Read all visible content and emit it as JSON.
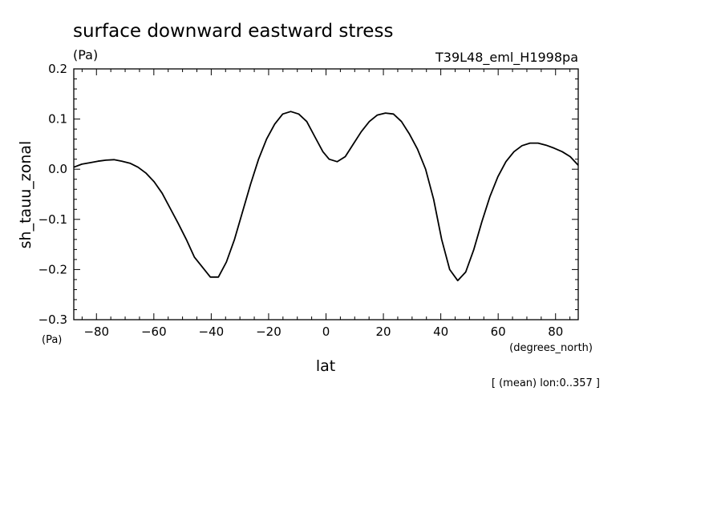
{
  "chart_data": {
    "type": "line",
    "title": "surface downward eastward stress",
    "units_top": "(Pa)",
    "dataset_label": "T39L48_eml_H1998pa",
    "ylabel": "sh_tauu_zonal",
    "ylabel_units": "(Pa)",
    "xlabel": "lat",
    "xlabel_units": "(degrees_north)",
    "footnote": "[ (mean) lon:0..357 ]",
    "xlim": [
      -87.9,
      87.9
    ],
    "ylim": [
      -0.3,
      0.2
    ],
    "x_ticks": [
      -80,
      -60,
      -40,
      -20,
      0,
      20,
      40,
      60,
      80
    ],
    "x_tick_labels": [
      "−80",
      "−60",
      "−40",
      "−20",
      "0",
      "20",
      "40",
      "60",
      "80"
    ],
    "y_ticks": [
      0.2,
      0.1,
      0.0,
      -0.1,
      -0.2,
      -0.3
    ],
    "y_tick_labels": [
      "0.2",
      "0.1",
      "0.0",
      "−0.1",
      "−0.2",
      "−0.3"
    ],
    "grid": false,
    "series": [
      {
        "x": [
          -87.9,
          -85.1,
          -82.3,
          -79.5,
          -76.7,
          -73.9,
          -71.1,
          -68.3,
          -65.5,
          -62.7,
          -59.9,
          -57.1,
          -54.3,
          -51.5,
          -48.7,
          -45.9,
          -43.1,
          -40.3,
          -37.5,
          -34.7,
          -31.9,
          -29.1,
          -26.3,
          -23.5,
          -20.7,
          -17.9,
          -15.1,
          -12.3,
          -9.5,
          -6.7,
          -3.9,
          -1.1,
          1.1,
          3.9,
          6.7,
          9.5,
          12.3,
          15.1,
          17.9,
          20.7,
          23.5,
          26.3,
          29.1,
          31.9,
          34.7,
          37.5,
          40.3,
          43.1,
          45.9,
          48.7,
          51.5,
          54.3,
          57.1,
          59.9,
          62.7,
          65.5,
          68.3,
          71.1,
          73.9,
          76.7,
          79.5,
          82.3,
          85.1,
          87.9
        ],
        "y": [
          0.004,
          0.01,
          0.013,
          0.016,
          0.018,
          0.019,
          0.016,
          0.012,
          0.004,
          -0.008,
          -0.025,
          -0.048,
          -0.078,
          -0.108,
          -0.14,
          -0.175,
          -0.195,
          -0.215,
          -0.215,
          -0.185,
          -0.14,
          -0.085,
          -0.03,
          0.02,
          0.06,
          0.09,
          0.11,
          0.115,
          0.11,
          0.095,
          0.065,
          0.035,
          0.02,
          0.015,
          0.025,
          0.05,
          0.075,
          0.095,
          0.108,
          0.112,
          0.11,
          0.095,
          0.07,
          0.04,
          0.0,
          -0.06,
          -0.14,
          -0.2,
          -0.222,
          -0.205,
          -0.16,
          -0.105,
          -0.055,
          -0.015,
          0.015,
          0.035,
          0.047,
          0.052,
          0.052,
          0.048,
          0.042,
          0.035,
          0.025,
          0.008
        ]
      }
    ]
  }
}
